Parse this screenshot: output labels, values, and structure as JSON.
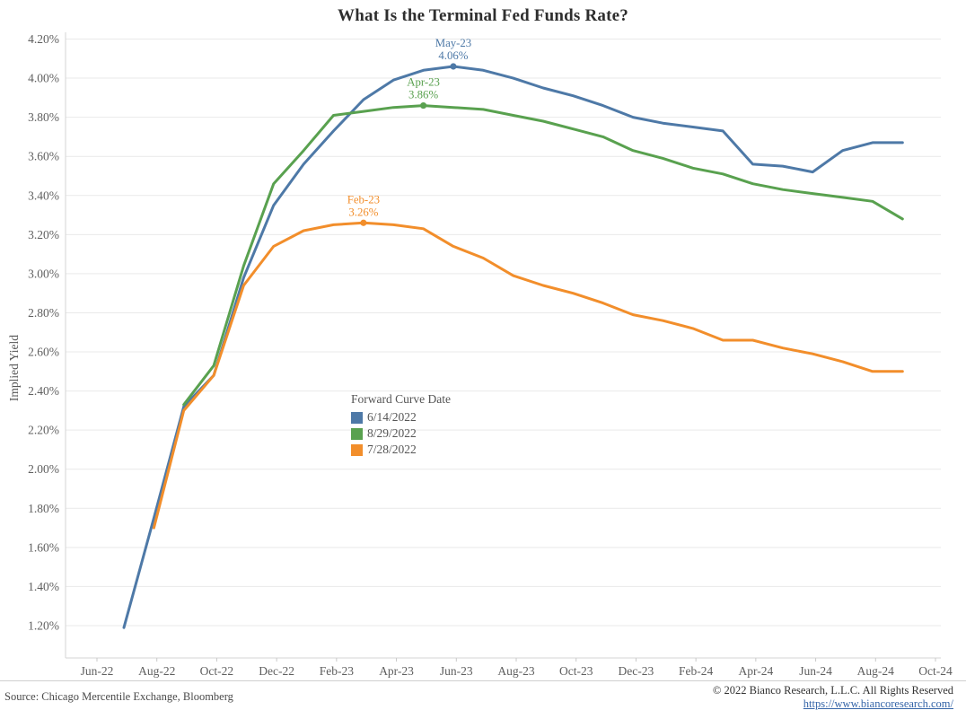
{
  "chart_data": {
    "type": "line",
    "title": "What Is the Terminal Fed Funds Rate?",
    "ylabel": "Implied Yield",
    "xlabel": "",
    "ylim": [
      1.2,
      4.2
    ],
    "y_tick_step": 0.2,
    "y_tick_labels": [
      "1.20%",
      "1.40%",
      "1.60%",
      "1.80%",
      "2.00%",
      "2.20%",
      "2.40%",
      "2.60%",
      "2.80%",
      "3.00%",
      "3.20%",
      "3.40%",
      "3.60%",
      "3.80%",
      "4.00%",
      "4.20%"
    ],
    "x_tick_labels": [
      "Jun-22",
      "Aug-22",
      "Oct-22",
      "Dec-22",
      "Feb-23",
      "Apr-23",
      "Jun-23",
      "Aug-23",
      "Oct-23",
      "Dec-23",
      "Feb-24",
      "Apr-24",
      "Jun-24",
      "Aug-24",
      "Oct-24"
    ],
    "x_months": [
      "Jun-22",
      "Jul-22",
      "Aug-22",
      "Sep-22",
      "Oct-22",
      "Nov-22",
      "Dec-22",
      "Jan-23",
      "Feb-23",
      "Mar-23",
      "Apr-23",
      "May-23",
      "Jun-23",
      "Jul-23",
      "Aug-23",
      "Sep-23",
      "Oct-23",
      "Nov-23",
      "Dec-23",
      "Jan-24",
      "Feb-24",
      "Mar-24",
      "Apr-24",
      "May-24",
      "Jun-24",
      "Jul-24",
      "Aug-24"
    ],
    "grid": true,
    "legend_position": "inside-left-center",
    "legend": {
      "title": "Forward Curve Date"
    },
    "series": [
      {
        "name": "6/14/2022",
        "color": "#4e79a7",
        "start_index": 0,
        "values": [
          1.19,
          1.75,
          2.32,
          2.48,
          2.98,
          3.35,
          3.56,
          3.73,
          3.89,
          3.99,
          4.04,
          4.06,
          4.04,
          4.0,
          3.95,
          3.91,
          3.86,
          3.8,
          3.77,
          3.75,
          3.73,
          3.56,
          3.55,
          3.52,
          3.63,
          3.67,
          3.67
        ]
      },
      {
        "name": "8/29/2022",
        "color": "#59a14f",
        "start_index": 2,
        "values": [
          2.33,
          2.53,
          3.04,
          3.46,
          3.63,
          3.81,
          3.83,
          3.85,
          3.86,
          3.85,
          3.84,
          3.81,
          3.78,
          3.74,
          3.7,
          3.63,
          3.59,
          3.54,
          3.51,
          3.46,
          3.43,
          3.41,
          3.39,
          3.37,
          3.28
        ]
      },
      {
        "name": "7/28/2022",
        "color": "#f28e2b",
        "start_index": 1,
        "values": [
          1.7,
          2.3,
          2.48,
          2.94,
          3.14,
          3.22,
          3.25,
          3.26,
          3.25,
          3.23,
          3.14,
          3.08,
          2.99,
          2.94,
          2.9,
          2.85,
          2.79,
          2.76,
          2.72,
          2.66,
          2.66,
          2.62,
          2.59,
          2.55,
          2.5,
          2.5
        ]
      }
    ],
    "annotations": [
      {
        "series_index": 0,
        "month": "May-23",
        "month_index": 11,
        "value": 4.06,
        "value_label": "4.06%"
      },
      {
        "series_index": 1,
        "month": "Apr-23",
        "month_index": 10,
        "value": 3.86,
        "value_label": "3.86%"
      },
      {
        "series_index": 2,
        "month": "Feb-23",
        "month_index": 8,
        "value": 3.26,
        "value_label": "3.26%"
      }
    ]
  },
  "footer": {
    "source": "Source: Chicago Mercentile Exchange, Bloomberg",
    "copyright": "© 2022 Bianco Research, L.L.C. All Rights Reserved",
    "link": "https://www.biancoresearch.com/"
  }
}
